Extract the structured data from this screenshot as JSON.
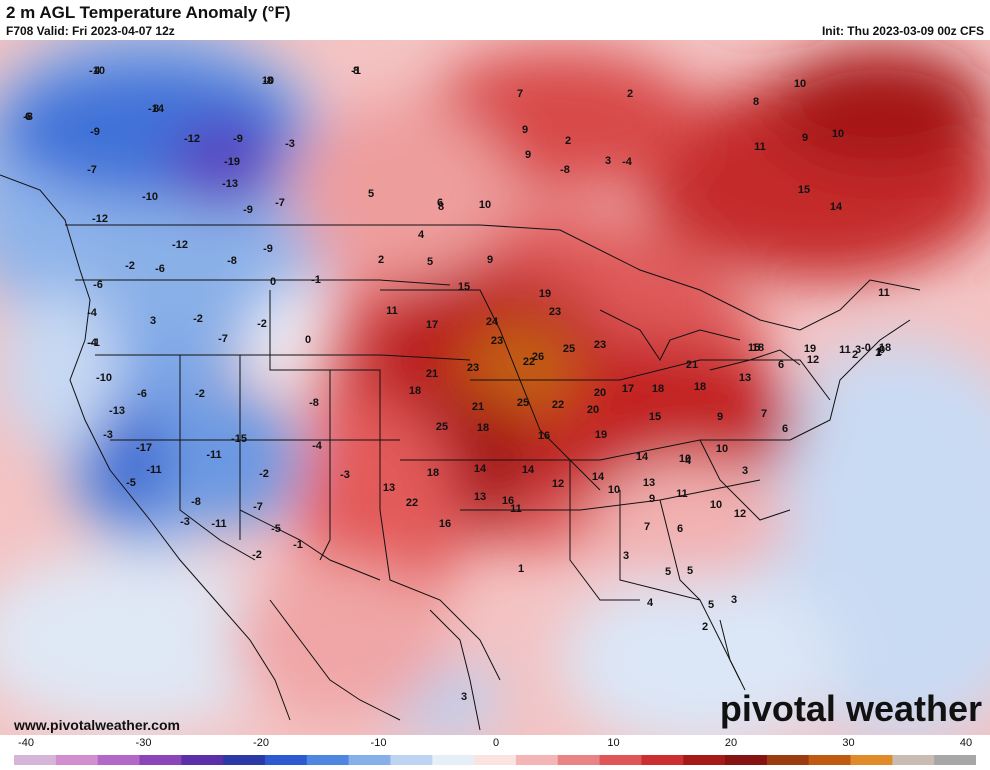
{
  "header": {
    "title": "2 m AGL Temperature Anomaly (°F)",
    "valid": "F708 Valid: Fri 2023-04-07 12z",
    "init": "Init: Thu 2023-03-09 00z CFS"
  },
  "footer": {
    "website": "www.pivotalweather.com",
    "brand": "pivotal weather"
  },
  "colorbar": {
    "ticks": [
      "-40",
      "-30",
      "-20",
      "-10",
      "0",
      "10",
      "20",
      "30",
      "40"
    ],
    "colors": [
      "#d7b5d8",
      "#d18fd0",
      "#b368c7",
      "#8a46b8",
      "#5a2fa8",
      "#2c3aa8",
      "#2d5ad0",
      "#4f86e0",
      "#86b0ea",
      "#bcd3f2",
      "#e6eef8",
      "#fbe3e2",
      "#f3b5b5",
      "#ea8484",
      "#df5656",
      "#cc2f2f",
      "#a51919",
      "#861212",
      "#9d3b10",
      "#c05a10",
      "#e08a2a",
      "#c9bdb3",
      "#a7a7a7"
    ]
  },
  "map_values": [
    {
      "v": "-10"
    },
    {
      "v": "-8"
    },
    {
      "v": "-1"
    },
    {
      "v": "-8"
    },
    {
      "v": "-14"
    },
    {
      "v": "-9"
    },
    {
      "v": "-12"
    },
    {
      "v": "-9"
    },
    {
      "v": "-3"
    },
    {
      "v": "-7"
    },
    {
      "v": "-19"
    },
    {
      "v": "-13"
    },
    {
      "v": "-10"
    },
    {
      "v": "-9"
    },
    {
      "v": "-7"
    },
    {
      "v": "-12"
    },
    {
      "v": "-12"
    },
    {
      "v": "-6"
    },
    {
      "v": "-8"
    },
    {
      "v": "-9"
    },
    {
      "v": "-2"
    },
    {
      "v": "-4"
    },
    {
      "v": "-6"
    },
    {
      "v": "-1"
    },
    {
      "v": "0"
    },
    {
      "v": "-4"
    },
    {
      "v": "3"
    },
    {
      "v": "-2"
    },
    {
      "v": "-1"
    },
    {
      "v": "-7"
    },
    {
      "v": "-2"
    },
    {
      "v": "0"
    },
    {
      "v": "-10"
    },
    {
      "v": "-6"
    },
    {
      "v": "-13"
    },
    {
      "v": "-2"
    },
    {
      "v": "-8"
    },
    {
      "v": "-3"
    },
    {
      "v": "-17"
    },
    {
      "v": "-15"
    },
    {
      "v": "-11"
    },
    {
      "v": "-11"
    },
    {
      "v": "-4"
    },
    {
      "v": "-2"
    },
    {
      "v": "-5"
    },
    {
      "v": "-7"
    },
    {
      "v": "-8"
    },
    {
      "v": "-3"
    },
    {
      "v": "-5"
    },
    {
      "v": "-11"
    },
    {
      "v": "-2"
    },
    {
      "v": "-1"
    },
    {
      "v": "-3"
    },
    {
      "v": "2"
    },
    {
      "v": "4"
    },
    {
      "v": "5"
    },
    {
      "v": "9"
    },
    {
      "v": "5"
    },
    {
      "v": "11"
    },
    {
      "v": "6"
    },
    {
      "v": "17"
    },
    {
      "v": "15"
    },
    {
      "v": "24"
    },
    {
      "v": "19"
    },
    {
      "v": "23"
    },
    {
      "v": "26"
    },
    {
      "v": "25"
    },
    {
      "v": "23"
    },
    {
      "v": "23"
    },
    {
      "v": "21"
    },
    {
      "v": "23"
    },
    {
      "v": "22"
    },
    {
      "v": "21"
    },
    {
      "v": "25"
    },
    {
      "v": "22"
    },
    {
      "v": "20"
    },
    {
      "v": "20"
    },
    {
      "v": "25"
    },
    {
      "v": "18"
    },
    {
      "v": "16"
    },
    {
      "v": "18"
    },
    {
      "v": "19"
    },
    {
      "v": "17"
    },
    {
      "v": "18"
    },
    {
      "v": "15"
    },
    {
      "v": "18"
    },
    {
      "v": "21"
    },
    {
      "v": "18"
    },
    {
      "v": "14"
    },
    {
      "v": "14"
    },
    {
      "v": "16"
    },
    {
      "v": "13"
    },
    {
      "v": "22"
    },
    {
      "v": "16"
    },
    {
      "v": "13"
    },
    {
      "v": "11"
    },
    {
      "v": "12"
    },
    {
      "v": "14"
    },
    {
      "v": "10"
    },
    {
      "v": "14"
    },
    {
      "v": "13"
    },
    {
      "v": "10"
    },
    {
      "v": "10"
    },
    {
      "v": "9"
    },
    {
      "v": "13"
    },
    {
      "v": "6"
    },
    {
      "v": "7"
    },
    {
      "v": "6"
    },
    {
      "v": "4"
    },
    {
      "v": "3"
    },
    {
      "v": "11"
    },
    {
      "v": "12"
    },
    {
      "v": "9"
    },
    {
      "v": "10"
    },
    {
      "v": "6"
    },
    {
      "v": "5"
    },
    {
      "v": "7"
    },
    {
      "v": "5"
    },
    {
      "v": "5"
    },
    {
      "v": "3"
    },
    {
      "v": "2"
    },
    {
      "v": "4"
    },
    {
      "v": "3"
    },
    {
      "v": "3"
    },
    {
      "v": "1"
    },
    {
      "v": "2"
    },
    {
      "v": "3"
    },
    {
      "v": "2"
    },
    {
      "v": "-8"
    },
    {
      "v": "-4"
    },
    {
      "v": "10"
    },
    {
      "v": "8"
    },
    {
      "v": "9"
    },
    {
      "v": "9"
    },
    {
      "v": "7"
    },
    {
      "v": "8"
    },
    {
      "v": "10"
    },
    {
      "v": "11"
    },
    {
      "v": "9"
    },
    {
      "v": "10"
    },
    {
      "v": "14"
    },
    {
      "v": "15"
    },
    {
      "v": "19"
    },
    {
      "v": "18"
    },
    {
      "v": "15"
    },
    {
      "v": "12"
    },
    {
      "v": "11"
    },
    {
      "v": "18"
    },
    {
      "v": "11"
    },
    {
      "v": "-0"
    },
    {
      "v": "1"
    },
    {
      "v": "2"
    },
    {
      "v": "3"
    },
    {
      "v": "1"
    },
    {
      "v": "0"
    },
    {
      "v": "4"
    },
    {
      "v": "10"
    },
    {
      "v": "8"
    },
    {
      "v": "6"
    },
    {
      "v": "8"
    }
  ]
}
